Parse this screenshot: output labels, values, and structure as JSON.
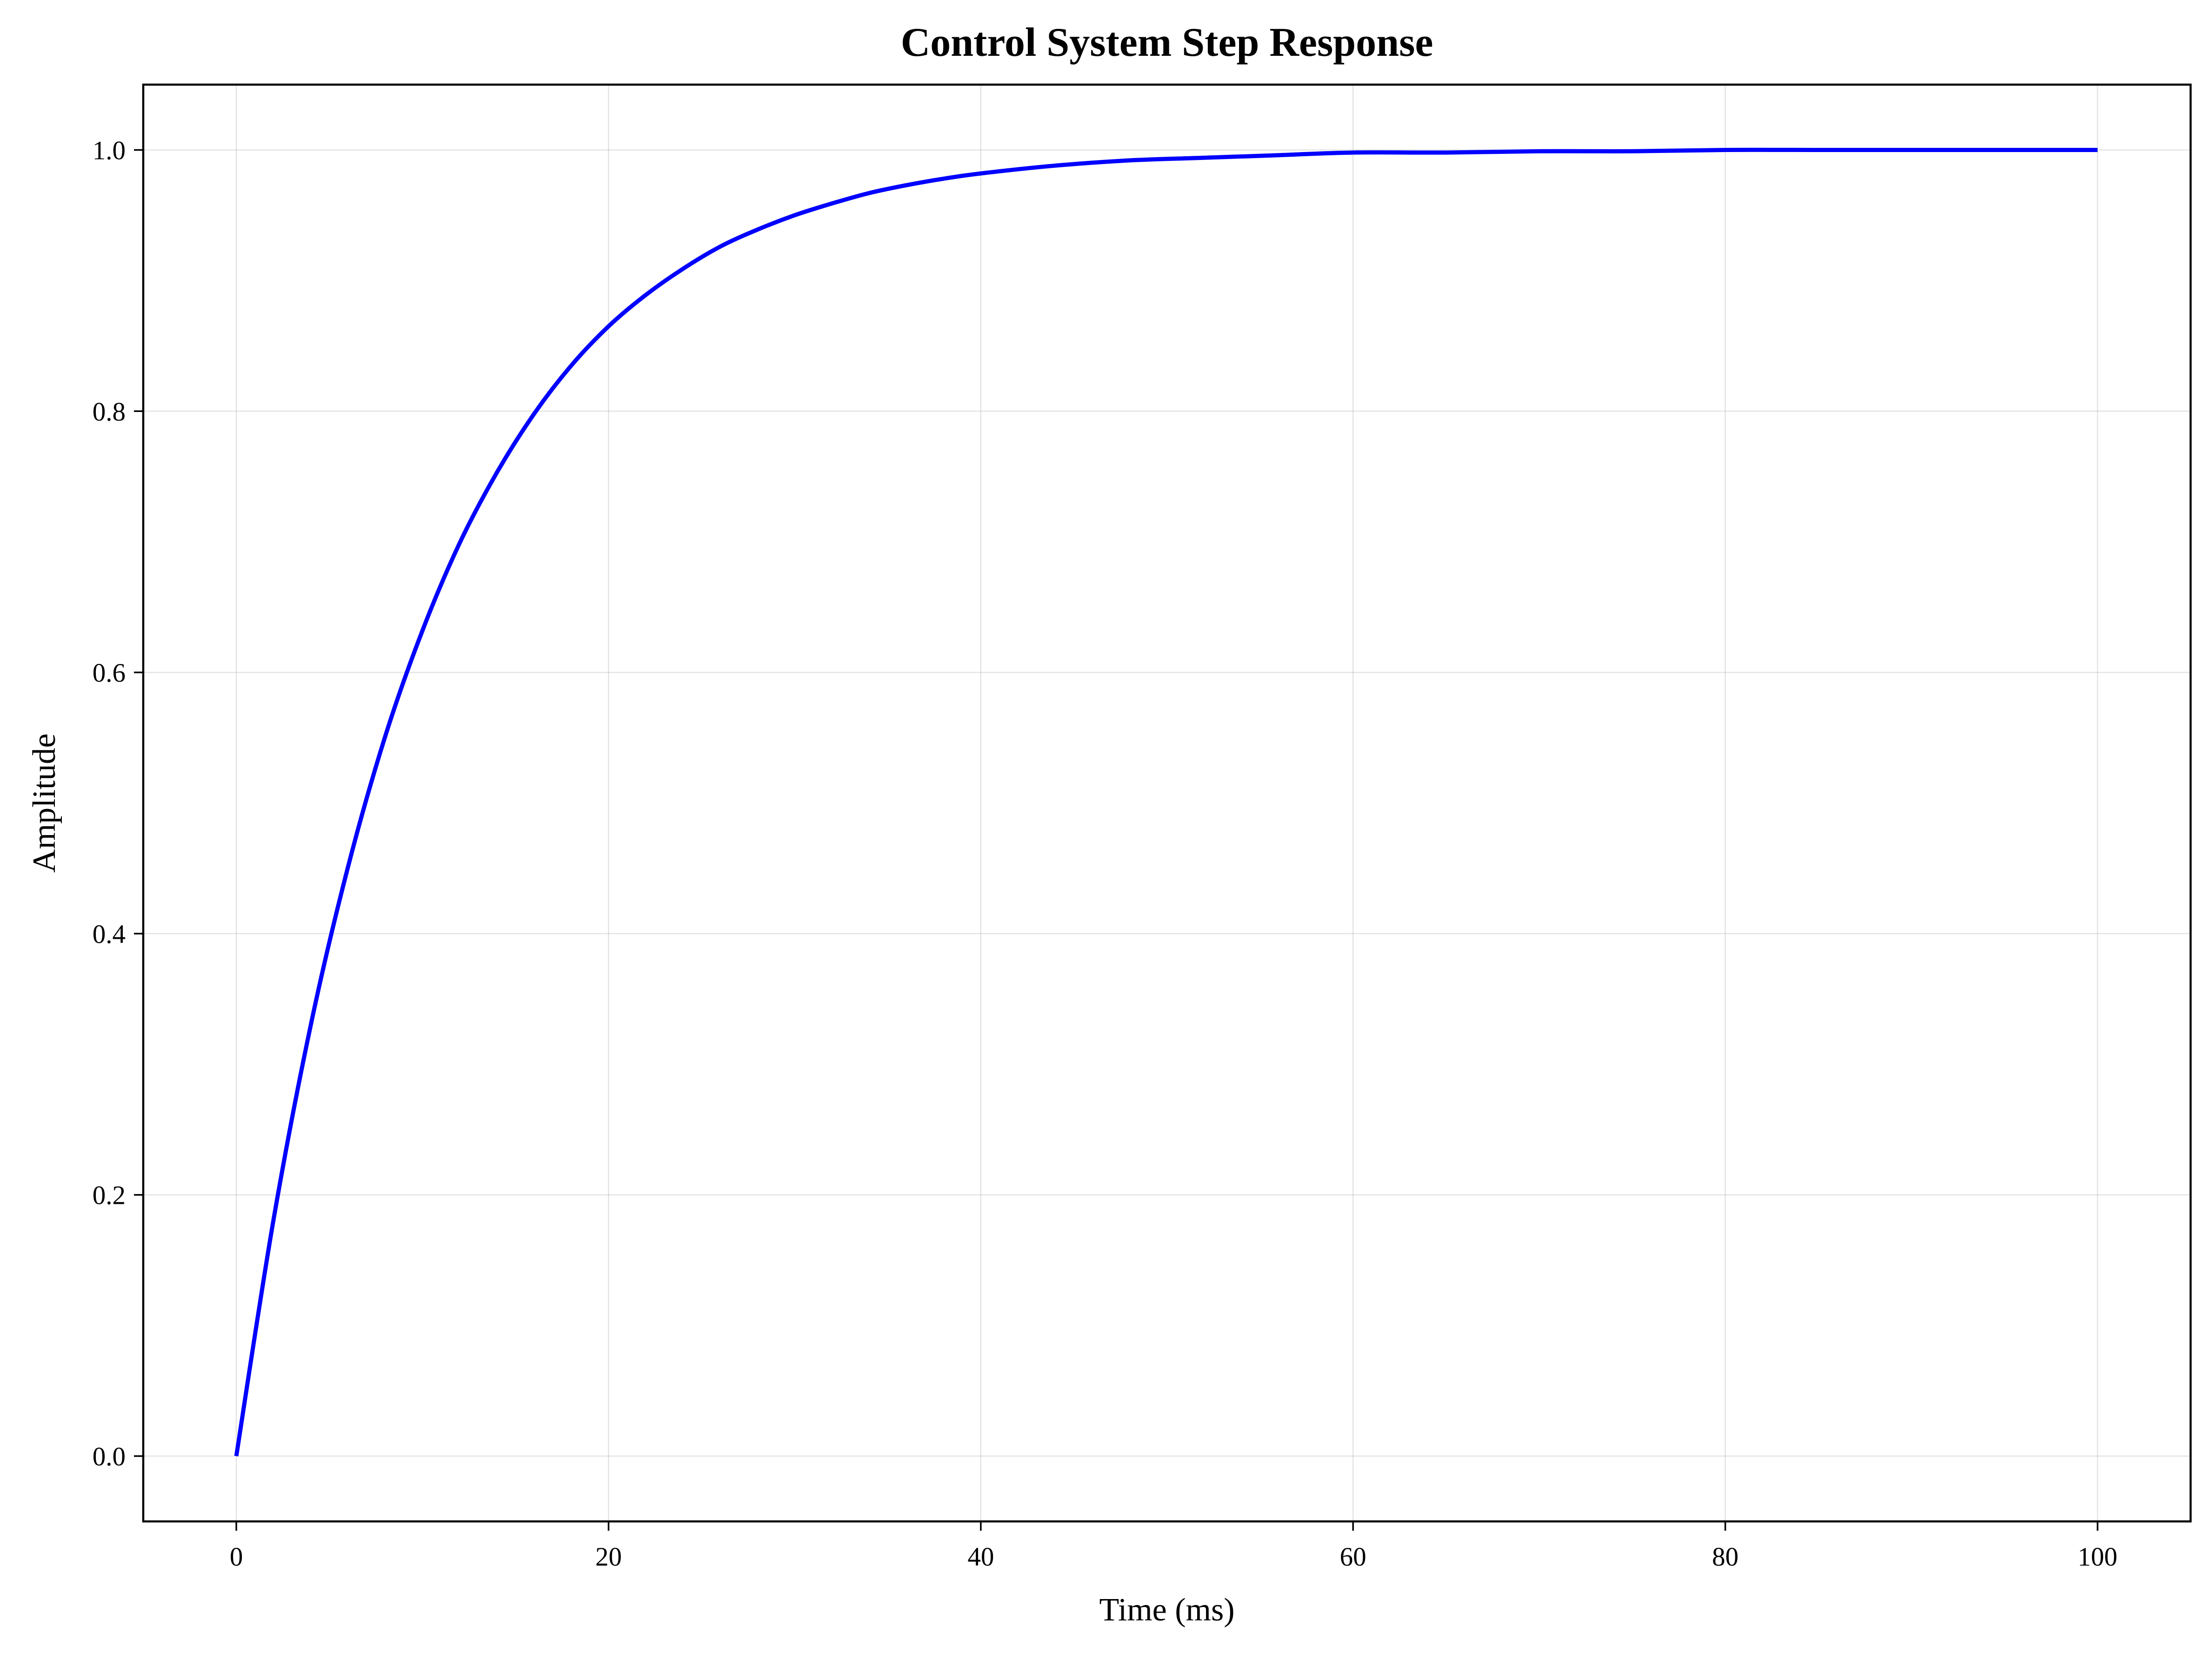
{
  "chart_data": {
    "type": "line",
    "title": "Control System Step Response",
    "xlabel": "Time (ms)",
    "ylabel": "Amplitude",
    "xlim": [
      -5,
      105
    ],
    "ylim": [
      -0.05,
      1.05
    ],
    "x_ticks": [
      0,
      20,
      40,
      60,
      80,
      100
    ],
    "x_tick_labels": [
      "0",
      "20",
      "40",
      "60",
      "80",
      "100"
    ],
    "y_ticks": [
      0.0,
      0.2,
      0.4,
      0.6,
      0.8,
      1.0
    ],
    "y_tick_labels": [
      "0.0",
      "0.2",
      "0.4",
      "0.6",
      "0.8",
      "1.0"
    ],
    "grid": true,
    "series": [
      {
        "color": "#0000ff",
        "x": [
          0,
          2,
          4,
          6,
          8,
          10,
          12,
          14,
          16,
          18,
          20,
          22,
          24,
          26,
          28,
          30,
          32,
          34,
          36,
          38,
          40,
          44,
          48,
          52,
          56,
          60,
          65,
          70,
          75,
          80,
          85,
          90,
          95,
          100
        ],
        "y": [
          0.0,
          0.181,
          0.33,
          0.451,
          0.551,
          0.632,
          0.699,
          0.753,
          0.798,
          0.835,
          0.865,
          0.889,
          0.909,
          0.926,
          0.939,
          0.95,
          0.959,
          0.967,
          0.973,
          0.978,
          0.982,
          0.988,
          0.992,
          0.994,
          0.996,
          0.998,
          0.998,
          0.999,
          0.999,
          1.0,
          1.0,
          1.0,
          1.0,
          1.0
        ]
      }
    ]
  }
}
